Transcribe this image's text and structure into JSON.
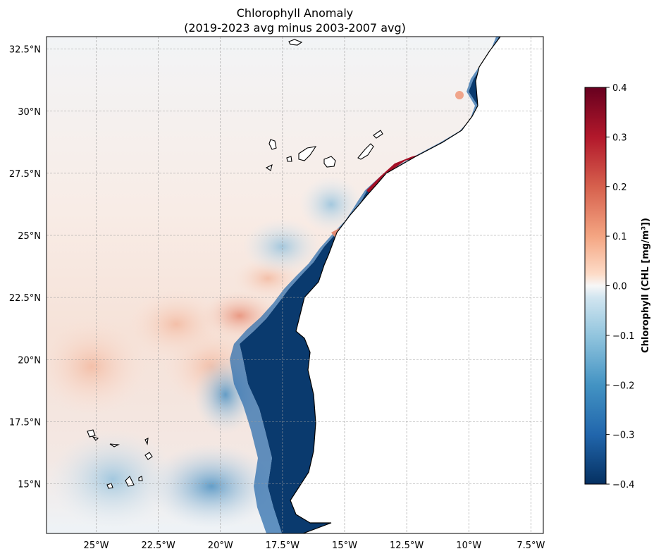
{
  "title_line1": "Chlorophyll Anomaly",
  "title_line2": "(2019-2023 avg minus 2003-2007 avg)",
  "colorbar": {
    "label": "Chlorophyll (CHL [mg/m³])",
    "ticks": [
      "0.4",
      "0.3",
      "0.2",
      "0.1",
      "0.0",
      "−0.1",
      "−0.2",
      "−0.3",
      "−0.4"
    ],
    "min": -0.4,
    "max": 0.4,
    "colormap": "RdBu_r",
    "colors": {
      "high": "#67001f",
      "mid": "#f7f7f7",
      "low": "#053061"
    }
  },
  "axes": {
    "lon_range": [
      -27.0,
      -7.0
    ],
    "lat_range": [
      13.0,
      33.0
    ],
    "lon_ticks": [
      "25°W",
      "22.5°W",
      "20°W",
      "17.5°W",
      "15°W",
      "12.5°W",
      "10°W",
      "7.5°W"
    ],
    "lat_ticks": [
      "32.5°N",
      "30°N",
      "27.5°N",
      "25°N",
      "22.5°N",
      "20°N",
      "17.5°N",
      "15°N"
    ],
    "grid": true,
    "coastlines": true
  },
  "land_color": "#ffffff"
}
